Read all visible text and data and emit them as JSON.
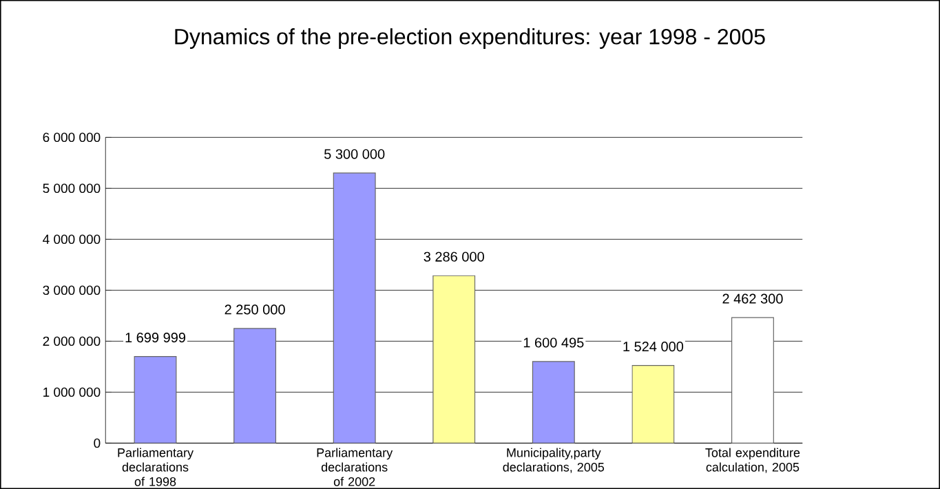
{
  "chart_data": {
    "type": "bar",
    "title": "Dynamics of the pre-election expenditures: year 1998 - 2005",
    "categories": [
      "Parliamentary declarations of 1998",
      null,
      "Parliamentary declarations of 2002",
      null,
      "Municipality,party declarations, 2005",
      null,
      "Total expenditure calculation, 2005"
    ],
    "values": [
      1699999,
      2250000,
      5300000,
      3286000,
      1600495,
      1524000,
      2462300
    ],
    "value_labels": [
      "1 699 999",
      "2 250 000",
      "5 300 000",
      "3 286 000",
      "1 600 495",
      "1 524 000",
      "2 462 300"
    ],
    "colors": [
      "#9999ff",
      "#9999ff",
      "#9999ff",
      "#ffff99",
      "#9999ff",
      "#ffff99",
      "#ffffff"
    ],
    "ylim": [
      0,
      6000000
    ],
    "yticks": [
      {
        "value": 0,
        "label": "0"
      },
      {
        "value": 1000000,
        "label": "1 000 000"
      },
      {
        "value": 2000000,
        "label": "2 000 000"
      },
      {
        "value": 3000000,
        "label": "3 000 000"
      },
      {
        "value": 4000000,
        "label": "4 000 000"
      },
      {
        "value": 5000000,
        "label": "5 000 000"
      },
      {
        "value": 6000000,
        "label": "6 000 000"
      }
    ],
    "grid": "y"
  }
}
